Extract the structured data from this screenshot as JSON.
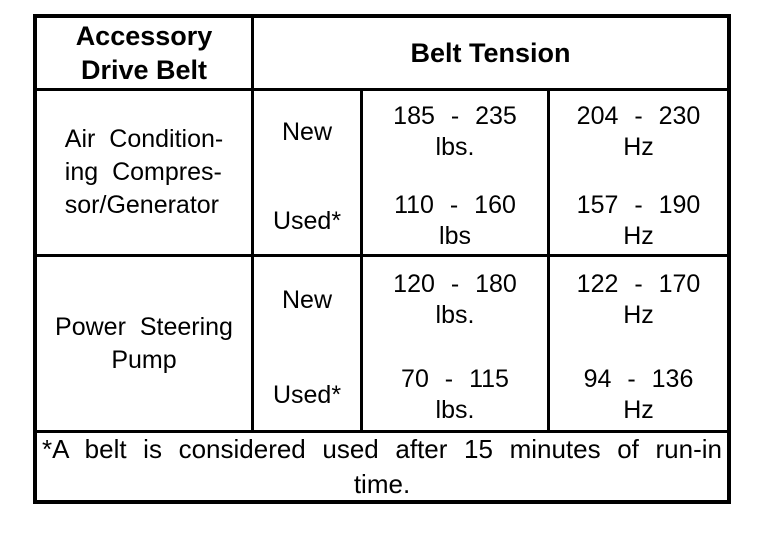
{
  "page": {
    "background": "#ffffff",
    "border_color": "#000000",
    "text_color": "#000000"
  },
  "table": {
    "header": {
      "accessory_lines": [
        "Accessory",
        "Drive Belt"
      ],
      "belt_tension": "Belt Tension"
    },
    "groups": [
      {
        "belt_lines": [
          "Air Condition-",
          "ing Compres-",
          "sor/Generator"
        ],
        "rows": [
          {
            "condition": "New",
            "lbs_range": "185 - 235",
            "lbs_unit": "lbs.",
            "hz_range": "204 - 230",
            "hz_unit": "Hz"
          },
          {
            "condition": "Used*",
            "lbs_range": "110 - 160",
            "lbs_unit": "lbs",
            "hz_range": "157 - 190",
            "hz_unit": "Hz"
          }
        ]
      },
      {
        "belt_lines": [
          "Power Steering",
          "Pump"
        ],
        "rows": [
          {
            "condition": "New",
            "lbs_range": "120 - 180",
            "lbs_unit": "lbs.",
            "hz_range": "122 - 170",
            "hz_unit": "Hz"
          },
          {
            "condition": "Used*",
            "lbs_range": "70 - 115",
            "lbs_unit": "lbs.",
            "hz_range": "94 - 136",
            "hz_unit": "Hz"
          }
        ]
      }
    ],
    "footnote_lines": [
      "*A belt is considered used after 15 minutes of run-in",
      "time."
    ]
  }
}
